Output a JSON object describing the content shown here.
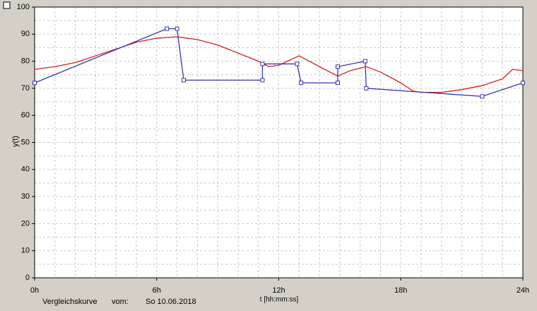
{
  "chart_data": {
    "type": "line",
    "ylabel": "y(t)",
    "xlabel": "t [hh:mm:ss]",
    "footer": [
      "Vergleichskurve",
      "vom:",
      "So 10.06.2018"
    ],
    "xlim": [
      0,
      24
    ],
    "ylim": [
      0,
      100
    ],
    "xticks": [
      {
        "value": 0,
        "label": "0h"
      },
      {
        "value": 6,
        "label": "6h"
      },
      {
        "value": 12,
        "label": "12h"
      },
      {
        "value": 18,
        "label": "18h"
      },
      {
        "value": 24,
        "label": "24h"
      }
    ],
    "yticks": [
      0,
      10,
      20,
      30,
      40,
      50,
      60,
      70,
      80,
      90,
      100
    ],
    "grid": true,
    "series": [
      {
        "color": "#d42020",
        "markers": false,
        "x": [
          0,
          1,
          2,
          3,
          4,
          5,
          6,
          7,
          8,
          9,
          10,
          11,
          11.5,
          12,
          13,
          14,
          14.9,
          15.5,
          16.3,
          17,
          18,
          18.6,
          19,
          20,
          21,
          22,
          23,
          23.5,
          24
        ],
        "values": [
          77,
          78,
          79.5,
          82,
          84.5,
          87,
          88.5,
          89,
          88,
          86,
          83,
          80,
          78,
          78.5,
          82,
          78,
          74.5,
          76.5,
          78,
          76,
          72,
          69,
          68.5,
          68.5,
          69.5,
          71,
          73.5,
          77,
          76.5
        ]
      },
      {
        "color": "#3636a6",
        "markers": true,
        "x": [
          0,
          6.5,
          7,
          7.33,
          11.2,
          11.2,
          12.9,
          13.1,
          14.9,
          14.9,
          16.25,
          16.3,
          22,
          24
        ],
        "values": [
          72,
          92,
          92,
          73,
          73,
          79,
          79,
          72,
          72,
          78,
          80,
          70,
          67,
          72
        ]
      }
    ]
  }
}
